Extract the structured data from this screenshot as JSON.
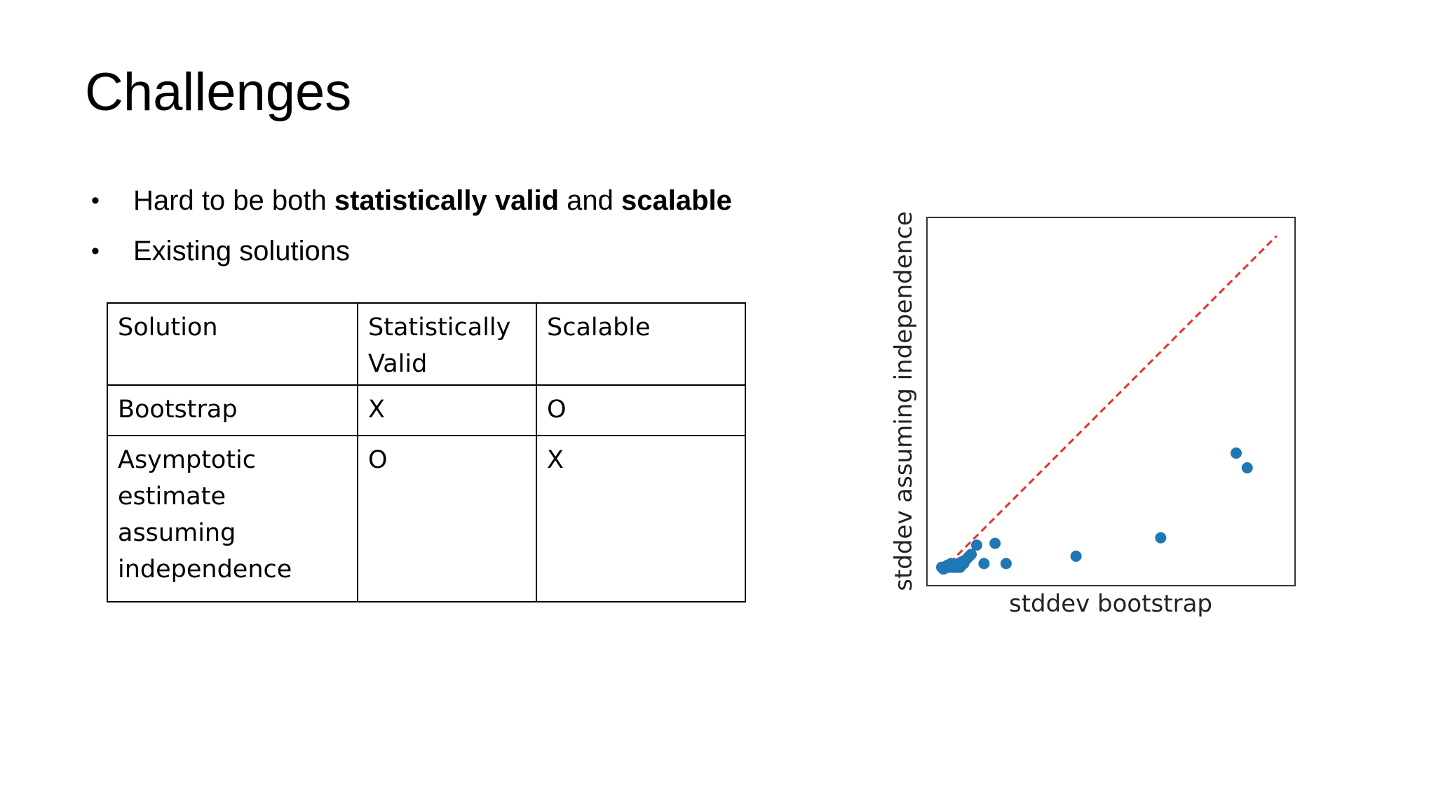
{
  "slide": {
    "title": "Challenges"
  },
  "bullets": [
    {
      "parts": [
        {
          "text": "Hard to be both ",
          "bold": false
        },
        {
          "text": "statistically valid",
          "bold": true
        },
        {
          "text": " and ",
          "bold": false
        },
        {
          "text": "scalable",
          "bold": true
        }
      ]
    },
    {
      "parts": [
        {
          "text": "Existing solutions",
          "bold": false
        }
      ]
    }
  ],
  "bullet_marker": "•",
  "table": {
    "header": [
      "Solution",
      "Statistically Valid",
      "Scalable"
    ],
    "rows": [
      [
        "Bootstrap",
        "X",
        "O"
      ],
      [
        "Asymptotic estimate assuming independence",
        "O",
        "X"
      ]
    ]
  },
  "chart_data": {
    "type": "scatter",
    "xlabel": "stddev bootstrap",
    "ylabel": "stddev assuming independence",
    "xlim": [
      0,
      1
    ],
    "ylim": [
      0,
      1
    ],
    "reference_line": {
      "style": "dashed",
      "color": "#e8312e",
      "x": [
        0.04,
        0.95
      ],
      "y": [
        0.04,
        0.95
      ]
    },
    "point_color": "#1f77b4",
    "x_ticks": false,
    "y_ticks": false,
    "points": [
      {
        "x": 0.04,
        "y": 0.05
      },
      {
        "x": 0.045,
        "y": 0.045
      },
      {
        "x": 0.05,
        "y": 0.05
      },
      {
        "x": 0.055,
        "y": 0.055
      },
      {
        "x": 0.06,
        "y": 0.05
      },
      {
        "x": 0.065,
        "y": 0.06
      },
      {
        "x": 0.07,
        "y": 0.05
      },
      {
        "x": 0.075,
        "y": 0.055
      },
      {
        "x": 0.08,
        "y": 0.05
      },
      {
        "x": 0.085,
        "y": 0.06
      },
      {
        "x": 0.09,
        "y": 0.05
      },
      {
        "x": 0.095,
        "y": 0.065
      },
      {
        "x": 0.1,
        "y": 0.06
      },
      {
        "x": 0.105,
        "y": 0.07
      },
      {
        "x": 0.11,
        "y": 0.075
      },
      {
        "x": 0.115,
        "y": 0.08
      },
      {
        "x": 0.12,
        "y": 0.085
      },
      {
        "x": 0.135,
        "y": 0.11
      },
      {
        "x": 0.155,
        "y": 0.06
      },
      {
        "x": 0.185,
        "y": 0.115
      },
      {
        "x": 0.215,
        "y": 0.06
      },
      {
        "x": 0.405,
        "y": 0.08
      },
      {
        "x": 0.635,
        "y": 0.13
      },
      {
        "x": 0.84,
        "y": 0.36
      },
      {
        "x": 0.87,
        "y": 0.32
      }
    ]
  }
}
